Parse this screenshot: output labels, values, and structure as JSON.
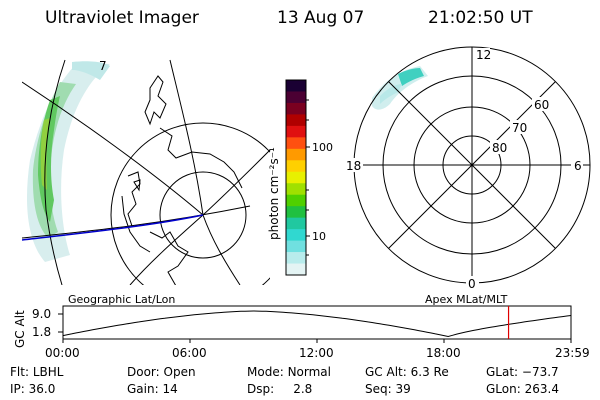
{
  "header": {
    "title": "Ultraviolet Imager",
    "date": "13 Aug 07",
    "time": "21:02:50 UT"
  },
  "left_map": {
    "label": "Geographic Lat/Lon",
    "corner_label": "7"
  },
  "right_map": {
    "label": "Apex MLat/MLT",
    "mlt_labels": [
      "12",
      "18",
      "6",
      "0"
    ],
    "mlat_labels": [
      "60",
      "70",
      "80"
    ]
  },
  "colorbar": {
    "unit_label": "photon cm⁻²s⁻¹",
    "tick_labels": [
      "100",
      "10"
    ],
    "colors": [
      "#1a0033",
      "#4b0033",
      "#7a0020",
      "#b00000",
      "#e01010",
      "#ff5010",
      "#ff9a00",
      "#ffd000",
      "#e8f000",
      "#a0e000",
      "#50d000",
      "#20c040",
      "#20c8a0",
      "#30d8d0",
      "#70e0e0",
      "#b8ecec",
      "#e4f4f4"
    ]
  },
  "altitude_plot": {
    "ylabel": "GC Alt",
    "yticks": [
      "9.0",
      "1.8"
    ],
    "xticks": [
      "00:00",
      "06:00",
      "12:00",
      "18:00",
      "23:59"
    ],
    "current_time_hours": 21.05
  },
  "info": {
    "row1": [
      {
        "key": "Flt:",
        "value": "LBHL"
      },
      {
        "key": "Door:",
        "value": "Open"
      },
      {
        "key": "Mode:",
        "value": "Normal"
      },
      {
        "key": "GC Alt:",
        "value": "6.3 Re"
      },
      {
        "key": "GLat:",
        "value": "−73.7"
      }
    ],
    "row2": [
      {
        "key": "IP:",
        "value": "36.0"
      },
      {
        "key": "Gain:",
        "value": "14"
      },
      {
        "key": "Dsp:",
        "value": "2.8"
      },
      {
        "key": "Seq:",
        "value": "39"
      },
      {
        "key": "GLon:",
        "value": "263.4"
      }
    ]
  }
}
